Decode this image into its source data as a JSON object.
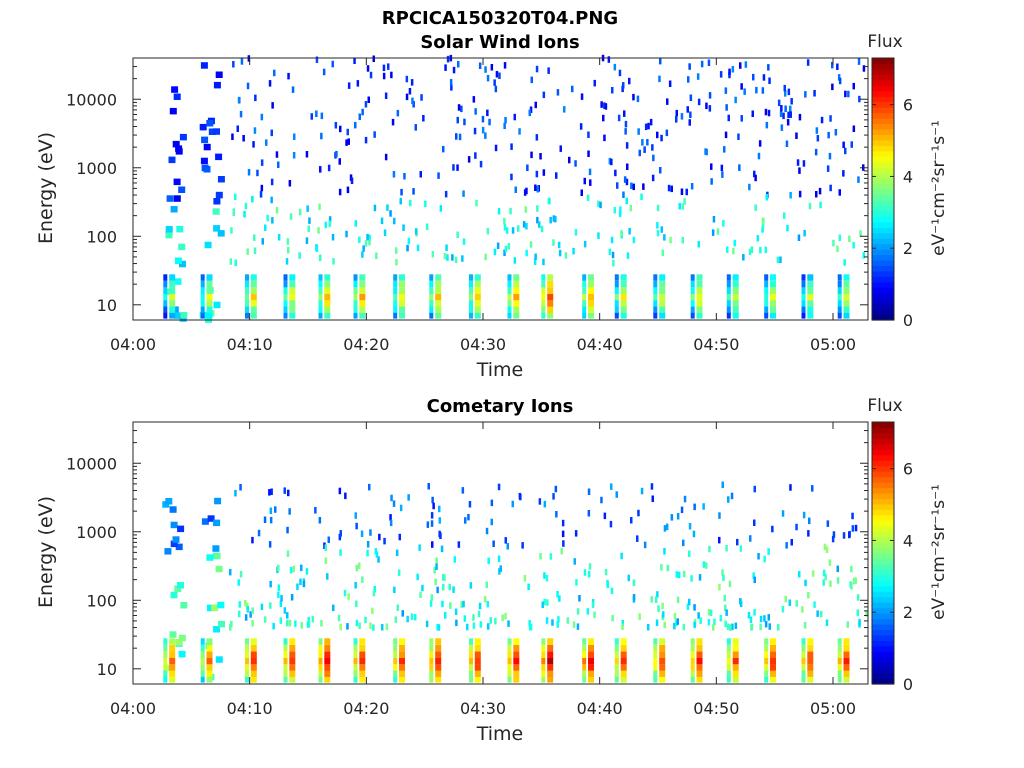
{
  "figure": {
    "title": "RPCICA150320T04.PNG"
  },
  "chart_data": [
    {
      "type": "heatmap",
      "title": "Solar Wind Ions",
      "xlabel": "Time",
      "ylabel": "Energy (eV)",
      "y_scale": "log",
      "xlim": [
        "04:00",
        "05:03"
      ],
      "ylim": [
        6,
        40000
      ],
      "x_ticks": [
        "04:00",
        "04:10",
        "04:20",
        "04:30",
        "04:40",
        "04:50",
        "05:00"
      ],
      "y_ticks": [
        "10",
        "100",
        "1000",
        "10000"
      ],
      "colorbar": {
        "label": "Flux",
        "unit": "eV⁻¹cm⁻²sr⁻¹s⁻¹",
        "ticks": [
          "0",
          "2",
          "4",
          "6"
        ],
        "range": [
          0,
          7.3
        ],
        "colormap": "jet"
      },
      "low_energy_peaks": [
        {
          "time": "04:03.5",
          "flux": 4.3
        },
        {
          "time": "04:06.7",
          "flux": 4.6
        },
        {
          "time": "04:10.5",
          "flux": 5.0
        },
        {
          "time": "04:13.8",
          "flux": 4.8
        },
        {
          "time": "04:16.8",
          "flux": 5.3
        },
        {
          "time": "04:19.8",
          "flux": 5.3
        },
        {
          "time": "04:23.2",
          "flux": 5.0
        },
        {
          "time": "04:26.3",
          "flux": 5.1
        },
        {
          "time": "04:29.7",
          "flux": 5.2
        },
        {
          "time": "04:33.0",
          "flux": 5.4
        },
        {
          "time": "04:35.9",
          "flux": 6.0
        },
        {
          "time": "04:39.4",
          "flux": 5.5
        },
        {
          "time": "04:42.2",
          "flux": 4.9
        },
        {
          "time": "04:45.5",
          "flux": 4.7
        },
        {
          "time": "04:48.7",
          "flux": 4.9
        },
        {
          "time": "04:51.8",
          "flux": 4.6
        },
        {
          "time": "04:55.0",
          "flux": 4.7
        },
        {
          "time": "04:58.2",
          "flux": 4.5
        },
        {
          "time": "05:01.3",
          "flux": 4.6
        }
      ]
    },
    {
      "type": "heatmap",
      "title": "Cometary Ions",
      "xlabel": "Time",
      "ylabel": "Energy (eV)",
      "y_scale": "log",
      "xlim": [
        "04:00",
        "05:03"
      ],
      "ylim": [
        6,
        40000
      ],
      "x_ticks": [
        "04:00",
        "04:10",
        "04:20",
        "04:30",
        "04:40",
        "04:50",
        "05:00"
      ],
      "y_ticks": [
        "10",
        "100",
        "1000",
        "10000"
      ],
      "colorbar": {
        "label": "Flux",
        "unit": "eV⁻¹cm⁻²sr⁻¹s⁻¹",
        "ticks": [
          "0",
          "2",
          "4",
          "6"
        ],
        "range": [
          0,
          7.3
        ],
        "colormap": "jet"
      },
      "low_energy_peaks": [
        {
          "time": "04:03.5",
          "flux": 6.0
        },
        {
          "time": "04:06.7",
          "flux": 5.8
        },
        {
          "time": "04:10.5",
          "flux": 6.5
        },
        {
          "time": "04:13.8",
          "flux": 6.4
        },
        {
          "time": "04:16.8",
          "flux": 6.9
        },
        {
          "time": "04:19.8",
          "flux": 6.5
        },
        {
          "time": "04:23.2",
          "flux": 6.4
        },
        {
          "time": "04:26.3",
          "flux": 6.7
        },
        {
          "time": "04:29.7",
          "flux": 6.5
        },
        {
          "time": "04:33.0",
          "flux": 6.6
        },
        {
          "time": "04:35.9",
          "flux": 7.0
        },
        {
          "time": "04:39.4",
          "flux": 6.8
        },
        {
          "time": "04:42.2",
          "flux": 6.4
        },
        {
          "time": "04:45.5",
          "flux": 6.3
        },
        {
          "time": "04:48.7",
          "flux": 6.6
        },
        {
          "time": "04:51.8",
          "flux": 6.2
        },
        {
          "time": "04:55.0",
          "flux": 6.5
        },
        {
          "time": "04:58.2",
          "flux": 6.3
        },
        {
          "time": "05:01.3",
          "flux": 6.4
        }
      ]
    }
  ]
}
